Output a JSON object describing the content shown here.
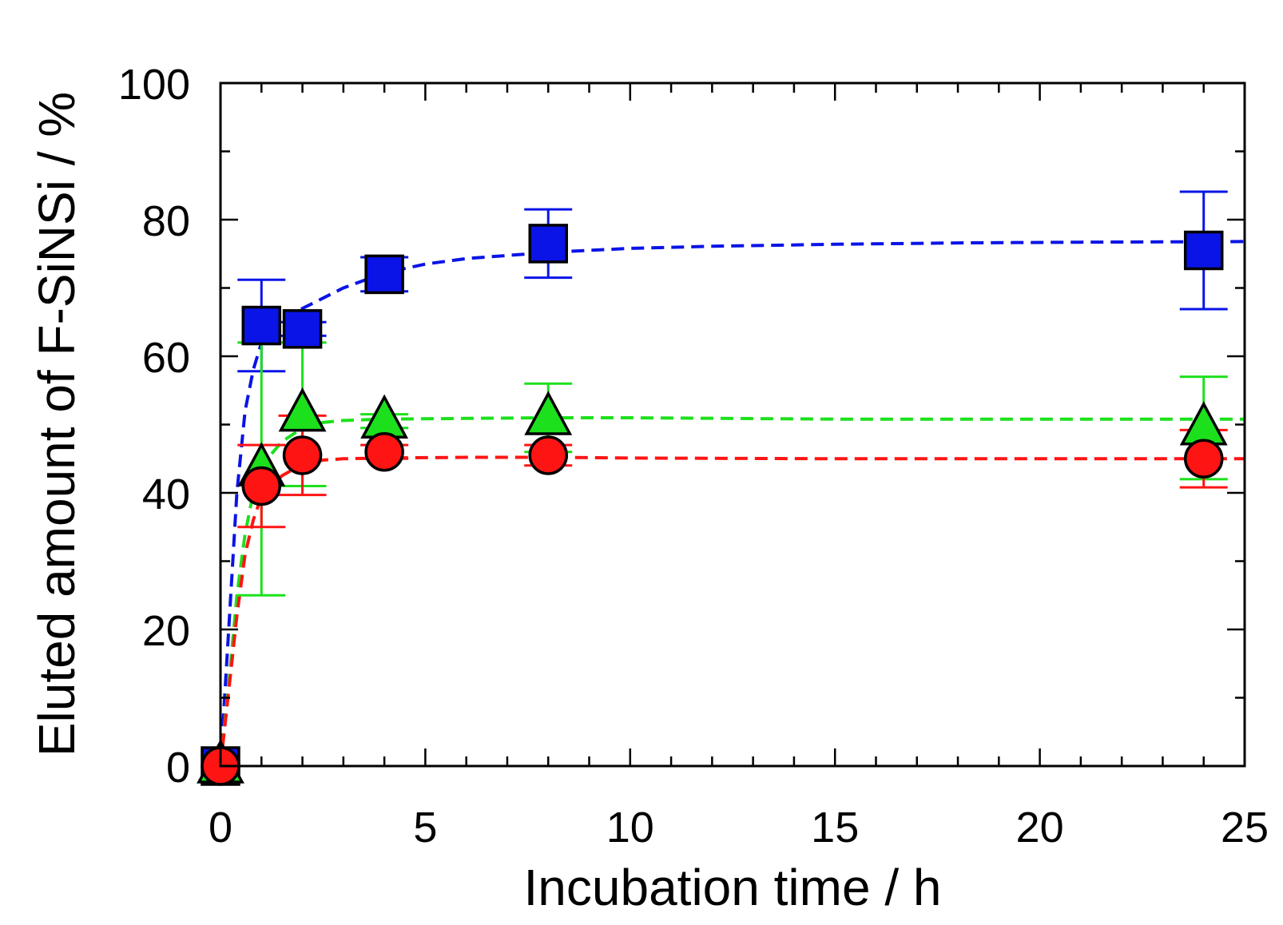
{
  "chart_data": {
    "type": "scatter",
    "title": "",
    "xlabel": "Incubation time / h",
    "ylabel": "Eluted amount of F-SiNSi / %",
    "xlim": [
      0,
      25
    ],
    "ylim": [
      0,
      100
    ],
    "xticks": [
      0,
      5,
      10,
      15,
      20,
      25
    ],
    "yticks": [
      0,
      20,
      40,
      60,
      80,
      100
    ],
    "x_minor_step": 1,
    "y_minor_step": 10,
    "grid": false,
    "legend": "none",
    "series": [
      {
        "name": "square",
        "marker": "square",
        "color": "#0a14e6",
        "x": [
          0,
          1,
          2,
          4,
          8,
          24
        ],
        "y": [
          0,
          64.5,
          64,
          72,
          76.5,
          75.5
        ],
        "err": [
          0,
          6.7,
          1.0,
          2.5,
          5.0,
          8.6
        ],
        "fit_x": [
          0,
          0.2,
          0.4,
          0.6,
          0.8,
          1.0,
          1.5,
          2,
          2.5,
          3,
          4,
          5,
          6,
          8,
          10,
          12,
          15,
          18,
          21,
          25
        ],
        "fit_y": [
          0,
          20,
          40,
          52,
          58,
          62,
          65.5,
          67,
          68.5,
          70,
          72.2,
          73.5,
          74.3,
          75.2,
          75.8,
          76.1,
          76.4,
          76.6,
          76.7,
          76.8
        ]
      },
      {
        "name": "triangle",
        "marker": "triangle",
        "color": "#1de01d",
        "x": [
          0,
          1,
          2,
          4,
          8,
          24
        ],
        "y": [
          0,
          43.5,
          51.5,
          50.5,
          51,
          49.5
        ],
        "err": [
          0,
          18.5,
          10.5,
          1.0,
          5.0,
          7.5
        ],
        "fit_x": [
          0,
          0.2,
          0.4,
          0.6,
          0.8,
          1.0,
          1.5,
          2,
          2.5,
          3,
          4,
          6,
          8,
          10,
          15,
          20,
          25
        ],
        "fit_y": [
          0,
          12,
          25,
          34,
          40,
          44,
          47.5,
          49.5,
          50.3,
          50.6,
          50.8,
          50.9,
          51,
          51,
          50.8,
          50.8,
          50.8
        ]
      },
      {
        "name": "circle",
        "marker": "circle",
        "color": "#ff1414",
        "x": [
          0,
          1,
          2,
          4,
          8,
          24
        ],
        "y": [
          0,
          41,
          45.5,
          46,
          45.5,
          45
        ],
        "err": [
          0,
          6.0,
          5.8,
          1.0,
          1.5,
          4.2
        ],
        "fit_x": [
          0,
          0.2,
          0.4,
          0.6,
          0.8,
          1.0,
          1.5,
          2,
          2.5,
          3,
          4,
          6,
          8,
          10,
          15,
          20,
          25
        ],
        "fit_y": [
          0,
          11,
          22,
          31,
          36,
          39.5,
          42.5,
          44.2,
          44.8,
          45,
          45.1,
          45.2,
          45.2,
          45.1,
          45,
          45,
          45
        ]
      }
    ]
  }
}
